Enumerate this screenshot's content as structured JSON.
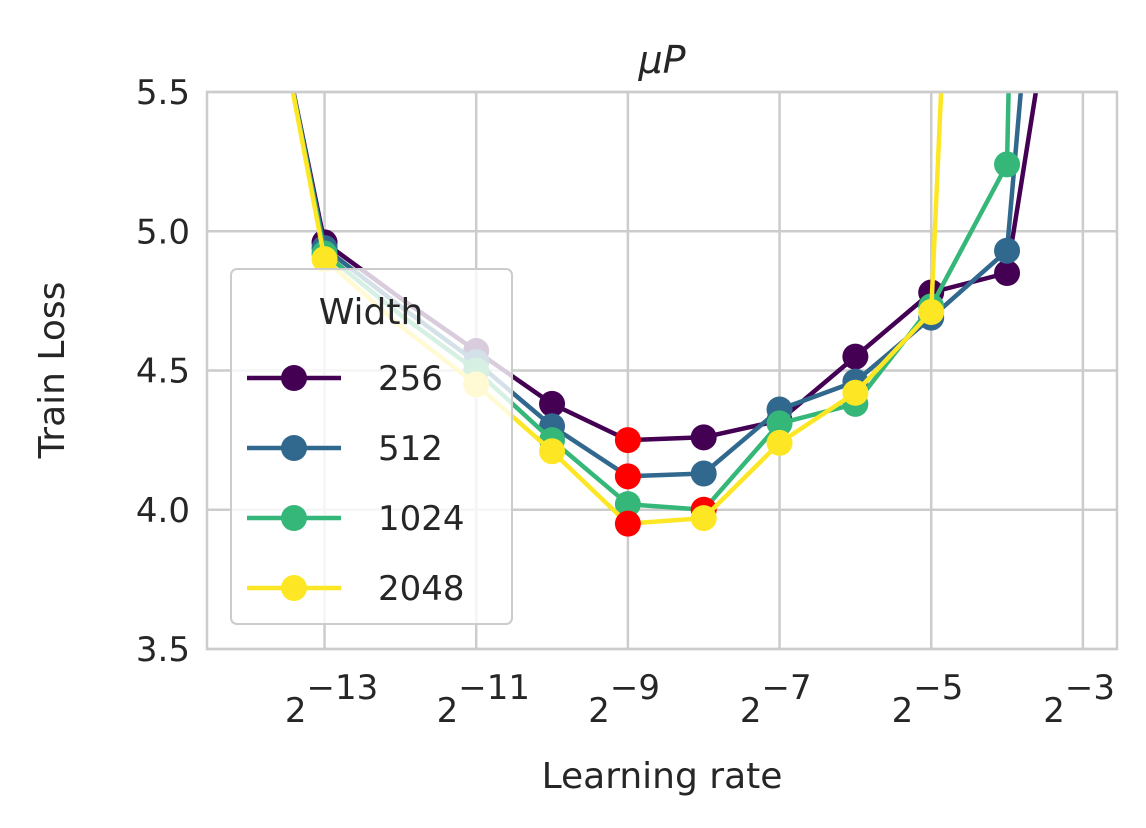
{
  "chart_data": {
    "type": "line",
    "title": "μP",
    "xlabel": "Learning rate",
    "ylabel": "Train Loss",
    "x_scale": "log2",
    "xlim_log2": [
      -14.55,
      -2.55
    ],
    "ylim": [
      3.5,
      5.5
    ],
    "x_ticks": [
      {
        "base": "2",
        "exp": "−13"
      },
      {
        "base": "2",
        "exp": "−11"
      },
      {
        "base": "2",
        "exp": "−9"
      },
      {
        "base": "2",
        "exp": "−7"
      },
      {
        "base": "2",
        "exp": "−5"
      },
      {
        "base": "2",
        "exp": "−3"
      }
    ],
    "x_tick_log2": [
      -13,
      -11,
      -9,
      -7,
      -5,
      -3
    ],
    "y_ticks": [
      "3.5",
      "4.0",
      "4.5",
      "5.0",
      "5.5"
    ],
    "y_tick_values": [
      3.5,
      4.0,
      4.5,
      5.0,
      5.5
    ],
    "grid": true,
    "legend": {
      "title": "Width",
      "position": "lower-left"
    },
    "optimum_marker_color": "#ff0000",
    "series": [
      {
        "name": "256",
        "color": "#440154",
        "x_log2": [
          -13.5,
          -13,
          -12,
          -11,
          -10,
          -9,
          -8,
          -7,
          -6,
          -5,
          -4,
          -3.55
        ],
        "y": [
          5.62,
          4.96,
          4.76,
          4.57,
          4.38,
          4.25,
          4.26,
          4.32,
          4.55,
          4.78,
          4.85,
          5.62
        ],
        "markers": [
          false,
          true,
          false,
          true,
          true,
          true,
          true,
          true,
          true,
          true,
          true,
          false
        ],
        "optimum_index": 5
      },
      {
        "name": "512",
        "color": "#31688e",
        "x_log2": [
          -13.5,
          -13,
          -12,
          -11,
          -10,
          -9,
          -8,
          -7,
          -6,
          -5,
          -4,
          -3.78
        ],
        "y": [
          5.62,
          4.94,
          4.73,
          4.53,
          4.3,
          4.12,
          4.13,
          4.36,
          4.46,
          4.69,
          4.93,
          5.62
        ],
        "markers": [
          false,
          true,
          false,
          true,
          true,
          true,
          true,
          true,
          true,
          true,
          true,
          false
        ],
        "optimum_index": 5
      },
      {
        "name": "1024",
        "color": "#35b779",
        "x_log2": [
          -13.5,
          -13,
          -12,
          -11,
          -10,
          -9,
          -8,
          -7,
          -6,
          -5,
          -4,
          -3.97
        ],
        "y": [
          5.62,
          4.92,
          4.7,
          4.5,
          4.25,
          4.02,
          4.0,
          4.31,
          4.38,
          4.73,
          5.24,
          5.62
        ],
        "markers": [
          false,
          true,
          false,
          true,
          true,
          true,
          true,
          true,
          true,
          true,
          true,
          false
        ],
        "optimum_index": 6
      },
      {
        "name": "2048",
        "color": "#fde725",
        "x_log2": [
          -13.5,
          -13,
          -12,
          -11,
          -10,
          -9,
          -8,
          -7,
          -6,
          -5,
          -4.85
        ],
        "y": [
          5.62,
          4.9,
          4.66,
          4.45,
          4.21,
          3.95,
          3.97,
          4.24,
          4.42,
          4.71,
          5.62
        ],
        "markers": [
          false,
          true,
          false,
          true,
          true,
          true,
          true,
          true,
          true,
          true,
          false
        ],
        "optimum_index": 5
      }
    ]
  }
}
